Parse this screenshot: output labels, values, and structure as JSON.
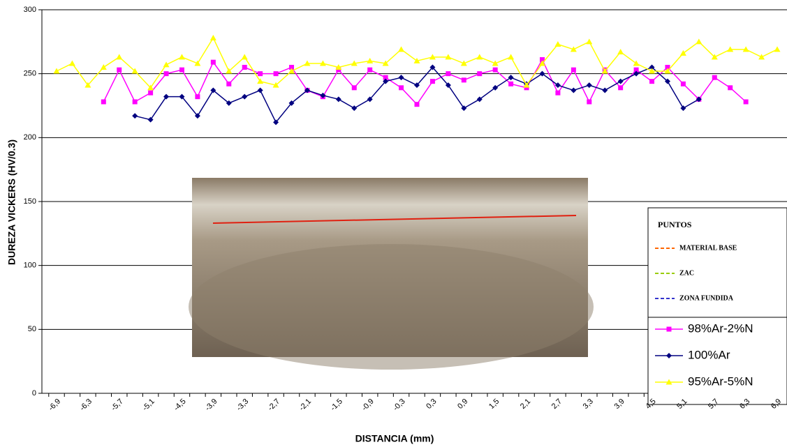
{
  "chart_data": {
    "type": "line",
    "x_label": "DISTANCIA (mm)",
    "y_label": "DUREZA VICKERS (HV/0.3)",
    "categories": [
      "-6,9",
      null,
      "-6,3",
      null,
      "-5,7",
      null,
      "-5,1",
      null,
      "-4,5",
      null,
      "-3,9",
      null,
      "-3,3",
      null,
      "-2,7",
      null,
      "-2,1",
      null,
      "-1,5",
      null,
      "-0,9",
      null,
      "-0,3",
      null,
      "0,3",
      null,
      "0,9",
      null,
      "1,5",
      null,
      "2,1",
      null,
      "2,7",
      null,
      "3,3",
      null,
      "3,9",
      null,
      "4,5",
      null,
      "5,1",
      null,
      "5,7",
      null,
      "6,3",
      null,
      "6,9"
    ],
    "ylim": [
      0,
      300
    ],
    "yticks": [
      0,
      50,
      100,
      150,
      200,
      250,
      300
    ],
    "grid": true,
    "series": [
      {
        "name": "98%Ar-2%N",
        "color": "#ff00ff",
        "marker": "square",
        "values": [
          null,
          null,
          null,
          228,
          253,
          228,
          235,
          250,
          253,
          232,
          259,
          242,
          255,
          250,
          250,
          255,
          237,
          232,
          253,
          239,
          253,
          247,
          239,
          226,
          244,
          250,
          245,
          250,
          253,
          242,
          239,
          261,
          235,
          253,
          228,
          253,
          239,
          253,
          244,
          255,
          242,
          230,
          247,
          239,
          228,
          null,
          null
        ]
      },
      {
        "name": "100%Ar",
        "color": "#000080",
        "marker": "diamond",
        "values": [
          null,
          null,
          null,
          null,
          null,
          217,
          214,
          232,
          232,
          217,
          237,
          227,
          232,
          237,
          212,
          227,
          237,
          233,
          230,
          223,
          230,
          244,
          247,
          241,
          255,
          241,
          223,
          230,
          239,
          247,
          242,
          250,
          241,
          237,
          241,
          237,
          244,
          250,
          255,
          244,
          223,
          230,
          null,
          null,
          null,
          null,
          null
        ]
      },
      {
        "name": "95%Ar-5%N",
        "color": "#ffff00",
        "marker": "triangle",
        "values": [
          252,
          258,
          241,
          255,
          263,
          252,
          239,
          257,
          263,
          258,
          278,
          252,
          263,
          244,
          241,
          252,
          258,
          258,
          255,
          258,
          260,
          258,
          269,
          260,
          263,
          263,
          258,
          263,
          258,
          263,
          241,
          258,
          273,
          269,
          275,
          252,
          267,
          258,
          252,
          252,
          266,
          275,
          263,
          269,
          269,
          263,
          269
        ]
      }
    ],
    "inset_legend": {
      "title": "PUNTOS",
      "items": [
        {
          "label": "MATERIAL BASE",
          "color": "#ff6600"
        },
        {
          "label": "ZAC",
          "color": "#99cc00"
        },
        {
          "label": "ZONA FUNDIDA",
          "color": "#3333cc"
        }
      ]
    }
  }
}
